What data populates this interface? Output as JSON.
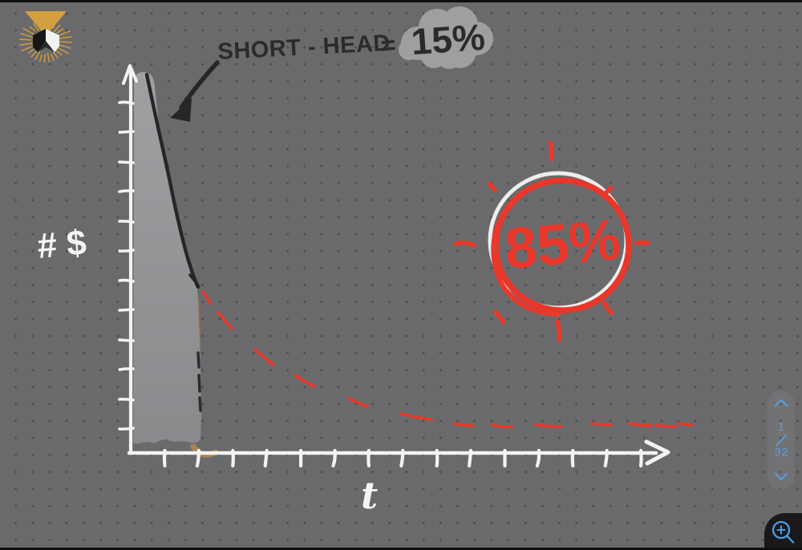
{
  "ui": {
    "logo_icon": "gold-sunburst-gem-logo",
    "pager": {
      "up_icon": "chevron-up",
      "current": "1",
      "divider": "/",
      "total": "32",
      "down_icon": "chevron-down"
    },
    "zoom_button_icon": "magnifier-zoom-in",
    "colors": {
      "canvas_bg": "#6a6a6c",
      "dot_grid": "#4e4e50",
      "ui_blue": "#5b9be0",
      "corner_bg": "#19191b",
      "logo_gold": "#cf9c3e"
    }
  },
  "chart_data": {
    "type": "area",
    "title": "",
    "xlabel": "t",
    "ylabel": "# $",
    "x_axis": {
      "label": "t",
      "tick_labels": [],
      "arrow": true,
      "ticks_count": 15
    },
    "y_axis": {
      "label": "# $",
      "tick_labels": [],
      "arrow": true,
      "ticks_count": 12
    },
    "grid": "dotted page background",
    "legend_position": "none",
    "xlim": [
      0,
      16.5
    ],
    "ylim": [
      0,
      10.5
    ],
    "series": [
      {
        "name": "short head (solid black curve, gray shaded area)",
        "style": "solid",
        "color": "#2b2b2d",
        "fill": "#96969a",
        "points": [
          [
            0.47,
            9.92
          ],
          [
            0.85,
            8.36
          ],
          [
            1.2,
            6.88
          ],
          [
            1.6,
            5.37
          ],
          [
            1.96,
            4.36
          ]
        ]
      },
      {
        "name": "long tail (red dashed curve)",
        "style": "dashed",
        "color": "#e8392b",
        "points": [
          [
            2.12,
            4.23
          ],
          [
            2.78,
            3.47
          ],
          [
            3.94,
            2.51
          ],
          [
            5.12,
            1.87
          ],
          [
            6.7,
            1.31
          ],
          [
            8.4,
            0.95
          ],
          [
            9.8,
            0.74
          ],
          [
            10.9,
            0.72
          ],
          [
            12.3,
            0.72
          ],
          [
            13.8,
            0.76
          ],
          [
            15.0,
            0.74
          ],
          [
            15.7,
            0.72
          ],
          [
            16.3,
            0.76
          ]
        ]
      }
    ],
    "shaded_area": {
      "x_range": [
        0.1,
        2.05
      ],
      "share_label": "15%"
    },
    "tail_share": {
      "share_label": "85%"
    }
  },
  "annotation": {
    "label": "SHORT - HEAD",
    "equals": "=",
    "value": "15%",
    "ink": "#2b2b2d",
    "highlight": "gray cloud blob behind value",
    "arrow_points_to": "steep head of curve"
  },
  "tail_callout": {
    "value": "85%",
    "ink": "#e8362a",
    "decoration": "hand-drawn red circle over white circle, with red sun-ray dashes"
  },
  "axes_labels": {
    "y": "# $",
    "x": "t"
  }
}
